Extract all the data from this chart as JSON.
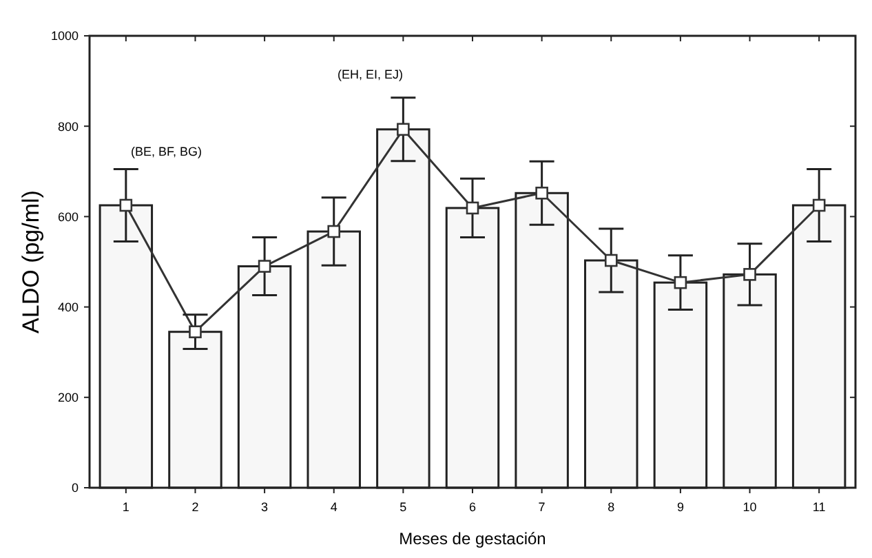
{
  "chart_data": {
    "type": "bar",
    "xlabel": "Meses de gestación",
    "ylabel": "ALDO (pg/ml)",
    "categories": [
      "1",
      "2",
      "3",
      "4",
      "5",
      "6",
      "7",
      "8",
      "9",
      "10",
      "11"
    ],
    "series": [
      {
        "color": "#f7f7f7",
        "values": [
          625,
          345,
          490,
          567,
          793,
          619,
          652,
          503,
          454,
          472,
          625
        ]
      },
      {
        "type": "line",
        "color": "#333333",
        "marker": "square",
        "line_style": "solid",
        "values": [
          625,
          345,
          490,
          567,
          793,
          619,
          652,
          503,
          454,
          472,
          625
        ],
        "errors": [
          80,
          38,
          64,
          75,
          70,
          65,
          70,
          70,
          60,
          68,
          80
        ]
      }
    ],
    "ylim": [
      0,
      1000
    ],
    "yticks": [
      0,
      200,
      400,
      600,
      800,
      1000
    ],
    "grid": false,
    "annotations": [
      "(BE, BF, BG)",
      "(EH, EI, EJ)"
    ]
  }
}
